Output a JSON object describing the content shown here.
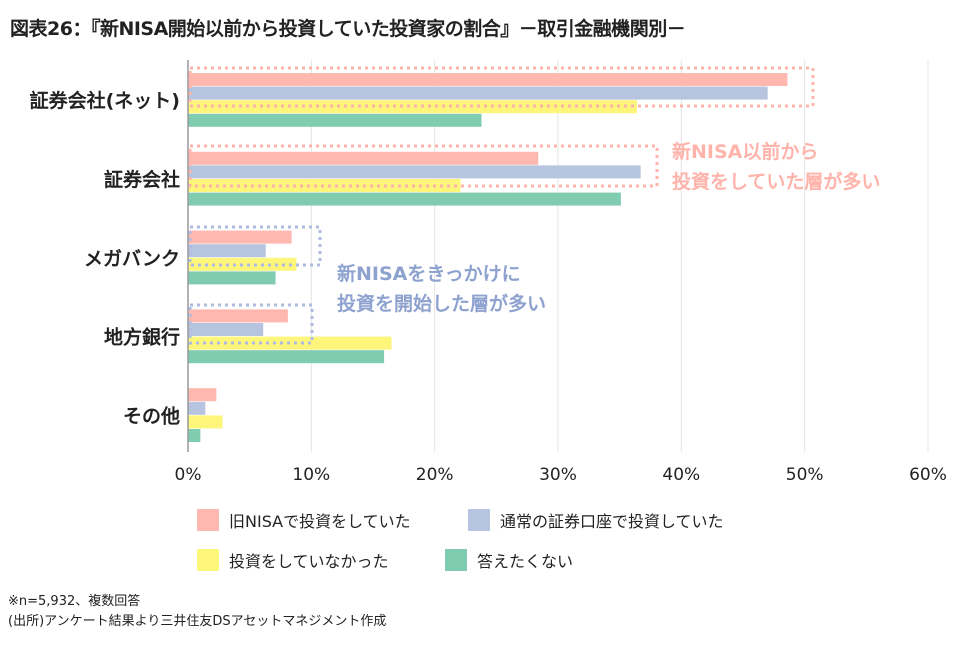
{
  "title": "図表26：『新NISA開始以前から投資していた投資家の割合』－取引金融機関別－",
  "notes": [
    "※n=5,932、複数回答",
    "(出所)アンケート結果より三井住友DSアセットマネジメント作成"
  ],
  "annotations": [
    {
      "lines": [
        "新NISA以前から",
        "投資をしていた層が多い"
      ],
      "color": "#ffb3aa"
    },
    {
      "lines": [
        "新NISAをきっかけに",
        "投資を開始した層が多い"
      ],
      "color": "#8ea2cf"
    }
  ],
  "chart_data": {
    "type": "bar",
    "orientation": "horizontal",
    "categories": [
      "証券会社(ネット)",
      "証券会社",
      "メガバンク",
      "地方銀行",
      "その他"
    ],
    "series": [
      {
        "name": "旧NISAで投資をしていた",
        "color": "#ffb8b0",
        "values": [
          48.6,
          28.4,
          8.4,
          8.1,
          2.3
        ]
      },
      {
        "name": "通常の証券口座で投資していた",
        "color": "#b6c4df",
        "values": [
          47.0,
          36.7,
          6.3,
          6.1,
          1.4
        ]
      },
      {
        "name": "投資をしていなかった",
        "color": "#fdf67a",
        "values": [
          36.4,
          22.1,
          8.8,
          16.5,
          2.8
        ]
      },
      {
        "name": "答えたくない",
        "color": "#80ccb0",
        "values": [
          23.8,
          35.1,
          7.1,
          15.9,
          1.0
        ]
      }
    ],
    "xlim": [
      0,
      60
    ],
    "xticks": [
      "0%",
      "10%",
      "20%",
      "30%",
      "40%",
      "50%",
      "60%"
    ],
    "grid": true,
    "legend": "bottom"
  }
}
